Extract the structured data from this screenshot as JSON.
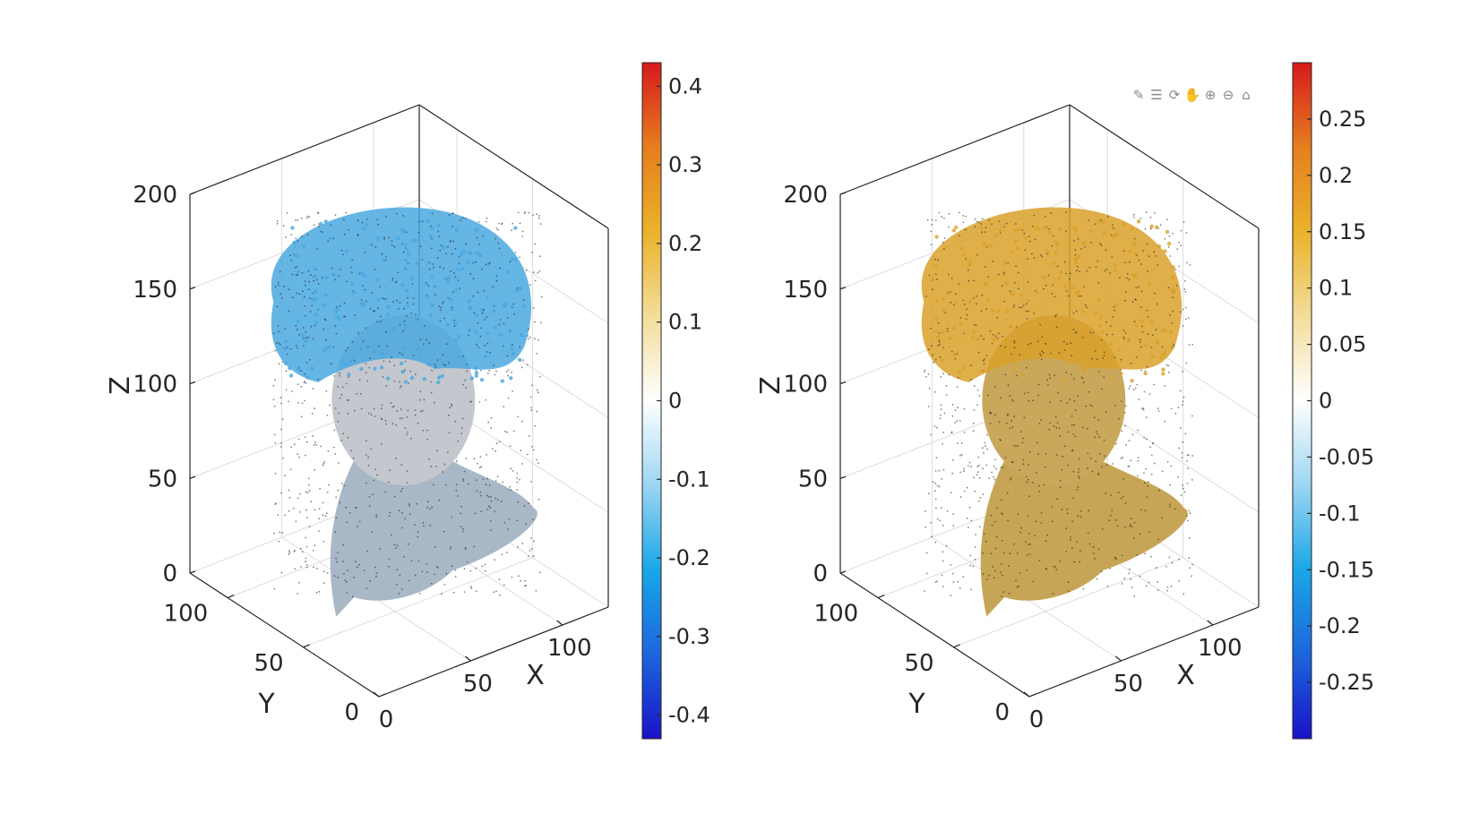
{
  "toolbar": {
    "icons": [
      "brush-icon",
      "datatip-icon",
      "rotate-icon",
      "pan-icon",
      "zoom-in-icon",
      "zoom-out-icon",
      "home-icon"
    ],
    "glyphs": [
      "✎",
      "☰",
      "⟳",
      "✋",
      "⊕",
      "⊖",
      "⌂"
    ]
  },
  "chart_data": [
    {
      "type": "scatter",
      "dimension": "3d",
      "title": "",
      "xlabel": "X",
      "ylabel": "Y",
      "zlabel": "Z",
      "xticks": [
        "0",
        "50",
        "100"
      ],
      "xtick_values": [
        0,
        50,
        100
      ],
      "yticks": [
        "0",
        "50",
        "100"
      ],
      "ytick_values": [
        0,
        50,
        100
      ],
      "zticks": [
        "0",
        "50",
        "100",
        "150",
        "200"
      ],
      "ztick_values": [
        0,
        50,
        100,
        150,
        200
      ],
      "xlim": [
        0,
        125
      ],
      "ylim": [
        0,
        125
      ],
      "zlim": [
        0,
        200
      ],
      "grid": true,
      "subject": "point cloud of a sculpted head, colored by a scalar value",
      "dominant_color": "#4aa8e0",
      "colorbar": {
        "range": [
          -0.43,
          0.43
        ],
        "ticks": [
          "0.4",
          "0.3",
          "0.2",
          "0.1",
          "0",
          "-0.1",
          "-0.2",
          "-0.3",
          "-0.4"
        ],
        "tick_values": [
          0.4,
          0.3,
          0.2,
          0.1,
          0,
          -0.1,
          -0.2,
          -0.3,
          -0.4
        ],
        "colormap": [
          "#1a12c8",
          "#1c66dc",
          "#1aa7e8",
          "#9cd6f2",
          "#ffffff",
          "#f3dd9a",
          "#eab22a",
          "#e67e1e",
          "#d7191c"
        ]
      }
    },
    {
      "type": "scatter",
      "dimension": "3d",
      "title": "",
      "xlabel": "X",
      "ylabel": "Y",
      "zlabel": "Z",
      "xticks": [
        "0",
        "50",
        "100"
      ],
      "xtick_values": [
        0,
        50,
        100
      ],
      "yticks": [
        "0",
        "50",
        "100"
      ],
      "ytick_values": [
        0,
        50,
        100
      ],
      "zticks": [
        "0",
        "50",
        "100",
        "150",
        "200"
      ],
      "ztick_values": [
        0,
        50,
        100,
        150,
        200
      ],
      "xlim": [
        0,
        125
      ],
      "ylim": [
        0,
        125
      ],
      "zlim": [
        0,
        200
      ],
      "grid": true,
      "subject": "point cloud of a sculpted head, colored by a scalar value",
      "dominant_color": "#d9a12a",
      "colorbar": {
        "range": [
          -0.3,
          0.3
        ],
        "ticks": [
          "0.25",
          "0.2",
          "0.15",
          "0.1",
          "0.05",
          "0",
          "-0.05",
          "-0.1",
          "-0.15",
          "-0.2",
          "-0.25"
        ],
        "tick_values": [
          0.25,
          0.2,
          0.15,
          0.1,
          0.05,
          0,
          -0.05,
          -0.1,
          -0.15,
          -0.2,
          -0.25
        ],
        "colormap": [
          "#1a12c8",
          "#1c66dc",
          "#1aa7e8",
          "#9cd6f2",
          "#ffffff",
          "#f3dd9a",
          "#eab22a",
          "#e67e1e",
          "#d7191c"
        ]
      }
    }
  ]
}
